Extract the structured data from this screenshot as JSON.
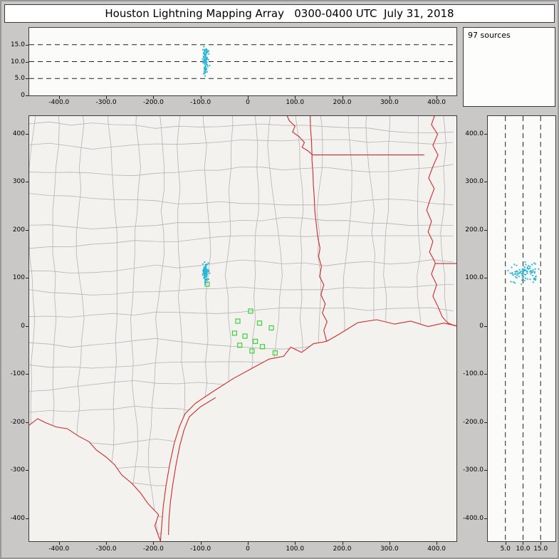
{
  "window": {
    "title": "Houston Lightning Mapping Array   0300-0400 UTC  July 31, 2018"
  },
  "panels": {
    "sources_count_label": "97 sources"
  },
  "colors": {
    "frame": "#c9c8c6",
    "panel_bg": "#fbfbf9",
    "map_bg": "#f3f2ef",
    "panel_border": "#3a3a3a",
    "grid": "#222222",
    "county": "#b4b4b4",
    "state": "#cf2a2a",
    "station": "#3bd23b",
    "source": "#2ab5d6"
  },
  "sources_cluster": {
    "count": 97,
    "seed": 20,
    "center_east_km": -90,
    "center_north_km": 112,
    "sd_east_km": 3,
    "sd_north_km": 9,
    "mean_alt_km": 10.3,
    "sd_alt_km": 2.0,
    "alt_min_km": 4.5,
    "alt_max_km": 16
  },
  "chart_data": [
    {
      "id": "alt_vs_ew",
      "type": "scatter",
      "xlim": [
        -463,
        442
      ],
      "ylim": [
        0,
        20
      ],
      "x_ticks": {
        "values": [
          -400,
          -300,
          -200,
          -100,
          0,
          100,
          200,
          300,
          400
        ],
        "labels": [
          "-400.0",
          "-300.0",
          "-200.0",
          "-100.0",
          "0",
          "100.0",
          "200.0",
          "300.0",
          "400.0"
        ]
      },
      "y_ticks": {
        "values": [
          0,
          5,
          10,
          15
        ],
        "labels": [
          "0",
          "5.0",
          "10.0",
          "15.0"
        ]
      },
      "gridlines": {
        "axis": "y",
        "values": [
          5,
          10,
          15
        ],
        "style": "dashed"
      },
      "series": [
        {
          "name": "lightning-sources",
          "marker": "dot",
          "color": "#2ab5d6",
          "points_from": "sources_cluster"
        }
      ]
    },
    {
      "id": "plan_view",
      "type": "scatter",
      "xlim": [
        -463,
        442
      ],
      "ylim": [
        -448,
        437
      ],
      "x_ticks": {
        "values": [
          -400,
          -300,
          -200,
          -100,
          0,
          100,
          200,
          300,
          400
        ],
        "labels": [
          "-400.0",
          "-300.0",
          "-200.0",
          "-100.0",
          "0",
          "100.0",
          "200.0",
          "300.0",
          "400.0"
        ]
      },
      "y_ticks": {
        "values": [
          400,
          300,
          200,
          100,
          0,
          -100,
          -200,
          -300,
          -400
        ],
        "labels": [
          "400",
          "300",
          "200",
          "100",
          "0",
          "-100",
          "-200",
          "-300",
          "-400"
        ]
      },
      "stations": {
        "name": "lma-stations",
        "marker": "square",
        "color": "#3bd23b",
        "points": [
          [
            -86,
            87
          ],
          [
            6,
            31
          ],
          [
            -21,
            10
          ],
          [
            25,
            6
          ],
          [
            -28,
            -15
          ],
          [
            50,
            -4
          ],
          [
            -6,
            -21
          ],
          [
            16,
            -32
          ],
          [
            -17,
            -40
          ],
          [
            31,
            -43
          ],
          [
            9,
            -52
          ],
          [
            58,
            -56
          ]
        ]
      },
      "series": [
        {
          "name": "lightning-sources",
          "marker": "dot",
          "color": "#2ab5d6",
          "points_from": "sources_cluster"
        }
      ],
      "map_layers": {
        "county_borders": {
          "color": "#b4b4b4",
          "generated": {
            "seed": 13,
            "spacing_km": 50,
            "jitter_km": 7,
            "seg_km": 45,
            "max_dev_km": 18,
            "x0": -445,
            "x1": 440,
            "y0": -430,
            "y1": 435
          }
        },
        "state_borders": {
          "color": "#cf2a2a",
          "polylines": {
            "coastline": [
              [
                475,
                -3
              ],
              [
                458,
                -3
              ],
              [
                415,
                6
              ],
              [
                382,
                -1
              ],
              [
                345,
                10
              ],
              [
                311,
                4
              ],
              [
                273,
                13
              ],
              [
                233,
                7
              ],
              [
                192,
                -18
              ],
              [
                167,
                -32
              ],
              [
                139,
                -37
              ],
              [
                114,
                -55
              ],
              [
                91,
                -44
              ],
              [
                76,
                -63
              ],
              [
                45,
                -69
              ],
              [
                11,
                -87
              ],
              [
                -30,
                -109
              ],
              [
                -73,
                -136
              ],
              [
                -111,
                -161
              ],
              [
                -133,
                -183
              ],
              [
                -145,
                -210
              ],
              [
                -156,
                -245
              ],
              [
                -165,
                -286
              ],
              [
                -173,
                -331
              ],
              [
                -179,
                -375
              ],
              [
                -182,
                -412
              ],
              [
                -185,
                -448
              ]
            ],
            "rio_grande": [
              [
                -185,
                -448
              ],
              [
                -197,
                -416
              ],
              [
                -189,
                -393
              ],
              [
                -212,
                -369
              ],
              [
                -227,
                -348
              ],
              [
                -245,
                -328
              ],
              [
                -267,
                -310
              ],
              [
                -282,
                -289
              ],
              [
                -300,
                -273
              ],
              [
                -321,
                -258
              ],
              [
                -336,
                -241
              ],
              [
                -359,
                -229
              ],
              [
                -382,
                -214
              ],
              [
                -406,
                -210
              ],
              [
                -429,
                -201
              ],
              [
                -445,
                -193
              ],
              [
                -465,
                -208
              ]
            ],
            "barrier_island": [
              [
                -68,
                -149
              ],
              [
                -100,
                -168
              ],
              [
                -124,
                -189
              ],
              [
                -135,
                -216
              ],
              [
                -144,
                -249
              ],
              [
                -152,
                -289
              ],
              [
                -159,
                -331
              ],
              [
                -164,
                -368
              ],
              [
                -167,
                -404
              ],
              [
                -168,
                -435
              ]
            ],
            "tx_la_border": [
              [
                167,
                -32
              ],
              [
                161,
                -9
              ],
              [
                168,
                9
              ],
              [
                158,
                27
              ],
              [
                164,
                46
              ],
              [
                155,
                65
              ],
              [
                161,
                86
              ],
              [
                152,
                103
              ],
              [
                156,
                124
              ],
              [
                150,
                145
              ],
              [
                153,
                162
              ],
              [
                148,
                186
              ],
              [
                145,
                213
              ],
              [
                142,
                239
              ],
              [
                141,
                266
              ],
              [
                139,
                292
              ],
              [
                138,
                319
              ],
              [
                136,
                345
              ],
              [
                136,
                357
              ],
              [
                135,
                384
              ],
              [
                133,
                410
              ],
              [
                132,
                445
              ]
            ],
            "red_river": [
              [
                80,
                445
              ],
              [
                88,
                427
              ],
              [
                100,
                416
              ],
              [
                95,
                404
              ],
              [
                109,
                394
              ],
              [
                120,
                382
              ],
              [
                115,
                372
              ],
              [
                127,
                365
              ],
              [
                136,
                357
              ]
            ],
            "ar_la_border": [
              [
                136,
                356
              ],
              [
                374,
                356
              ]
            ],
            "mississippi_river": [
              [
                398,
                445
              ],
              [
                389,
                419
              ],
              [
                402,
                399
              ],
              [
                392,
                376
              ],
              [
                403,
                356
              ],
              [
                392,
                332
              ],
              [
                383,
                308
              ],
              [
                395,
                286
              ],
              [
                386,
                263
              ],
              [
                379,
                241
              ],
              [
                389,
                218
              ],
              [
                382,
                196
              ],
              [
                392,
                176
              ],
              [
                385,
                154
              ],
              [
                395,
                136
              ],
              [
                397,
                130
              ],
              [
                389,
                108
              ],
              [
                400,
                86
              ],
              [
                392,
                62
              ],
              [
                403,
                40
              ],
              [
                412,
                19
              ],
              [
                424,
                6
              ],
              [
                440,
                0
              ]
            ],
            "la_ms_border": [
              [
                397,
                130
              ],
              [
                460,
                130
              ]
            ]
          }
        }
      }
    },
    {
      "id": "alt_vs_ns",
      "type": "scatter",
      "xlim": [
        0,
        19.2
      ],
      "ylim": [
        -448,
        437
      ],
      "x_ticks": {
        "values": [
          5,
          10,
          15
        ],
        "labels": [
          "5.0",
          "10.0",
          "15.0"
        ]
      },
      "y_ticks": {
        "values": [
          400,
          300,
          200,
          100,
          0,
          -100,
          -200,
          -300,
          -400
        ],
        "labels": [
          "400.0",
          "300.0",
          "200.0",
          "100.0",
          "0",
          "-100.0",
          "-200.0",
          "-300.0",
          "-400.0"
        ]
      },
      "gridlines": {
        "axis": "x",
        "values": [
          5,
          10,
          15
        ],
        "style": "dashed"
      },
      "series": [
        {
          "name": "lightning-sources",
          "marker": "dot",
          "color": "#2ab5d6",
          "points_from": "sources_cluster"
        }
      ]
    }
  ]
}
